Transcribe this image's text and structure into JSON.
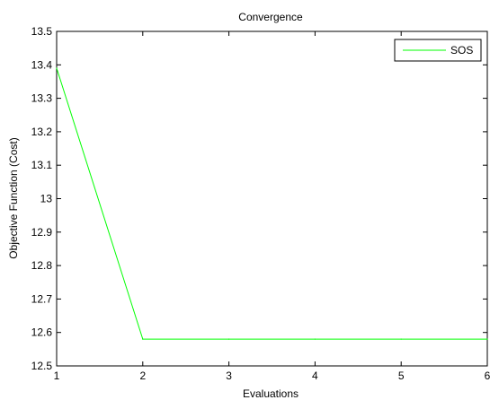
{
  "chart_data": {
    "type": "line",
    "title": "Convergence",
    "xlabel": "Evaluations",
    "ylabel": "Objective Function (Cost)",
    "xlim": [
      1,
      6
    ],
    "ylim": [
      12.5,
      13.5
    ],
    "xticks": [
      "1",
      "2",
      "3",
      "4",
      "5",
      "6"
    ],
    "yticks": [
      "12.5",
      "12.6",
      "12.7",
      "12.8",
      "12.9",
      "13",
      "13.1",
      "13.2",
      "13.3",
      "13.4",
      "13.5"
    ],
    "x": [
      1,
      2,
      3,
      4,
      5,
      6
    ],
    "series": [
      {
        "name": "SOS",
        "color": "#00ff00",
        "values": [
          13.39,
          12.58,
          12.58,
          12.58,
          12.58,
          12.58
        ]
      }
    ],
    "grid": false,
    "legend": "top-right"
  }
}
